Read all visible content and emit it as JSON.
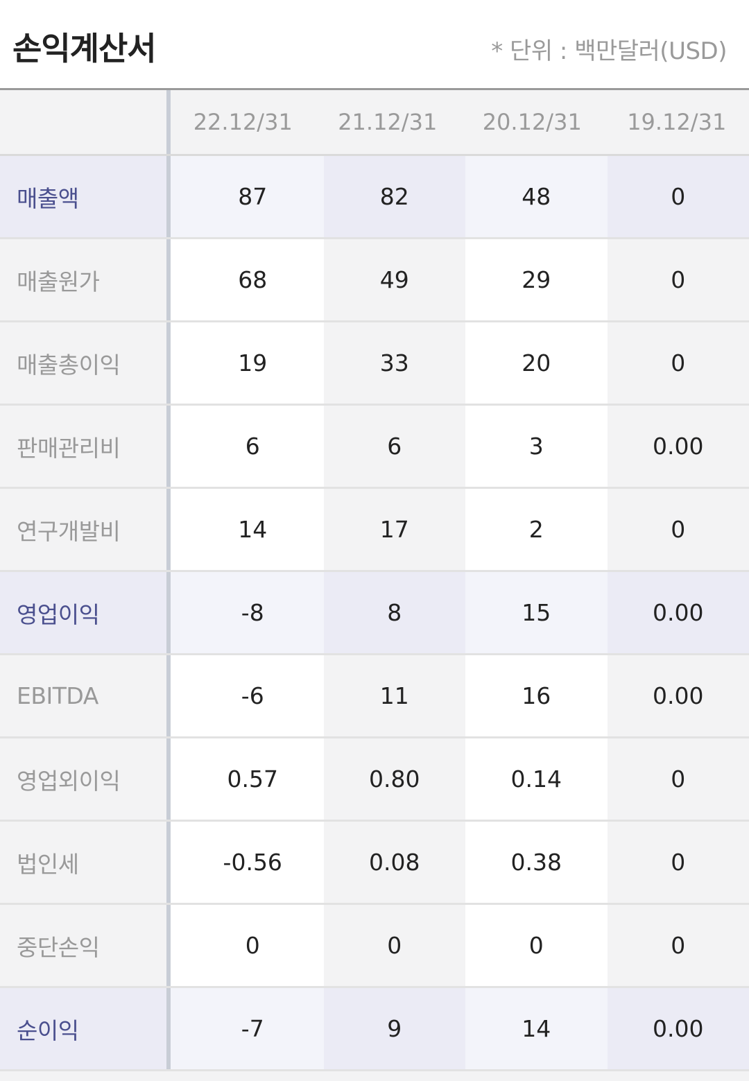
{
  "header": {
    "title": "손익계산서",
    "unit_note": "* 단위 : 백만달러(USD)"
  },
  "columns": [
    "22.12/31",
    "21.12/31",
    "20.12/31",
    "19.12/31"
  ],
  "rows": [
    {
      "label": "매출액",
      "values": [
        "87",
        "82",
        "48",
        "0"
      ]
    },
    {
      "label": "매출원가",
      "values": [
        "68",
        "49",
        "29",
        "0"
      ]
    },
    {
      "label": "매출총이익",
      "values": [
        "19",
        "33",
        "20",
        "0"
      ]
    },
    {
      "label": "판매관리비",
      "values": [
        "6",
        "6",
        "3",
        "0.00"
      ]
    },
    {
      "label": "연구개발비",
      "values": [
        "14",
        "17",
        "2",
        "0"
      ]
    },
    {
      "label": "영업이익",
      "values": [
        "-8",
        "8",
        "15",
        "0.00"
      ]
    },
    {
      "label": "EBITDA",
      "values": [
        "-6",
        "11",
        "16",
        "0.00"
      ]
    },
    {
      "label": "영업외이익",
      "values": [
        "0.57",
        "0.80",
        "0.14",
        "0"
      ]
    },
    {
      "label": "법인세",
      "values": [
        "-0.56",
        "0.08",
        "0.38",
        "0"
      ]
    },
    {
      "label": "중단손익",
      "values": [
        "0",
        "0",
        "0",
        "0"
      ]
    },
    {
      "label": "순이익",
      "values": [
        "-7",
        "9",
        "14",
        "0.00"
      ]
    }
  ],
  "colors": {
    "highlight_label": "#4a4f8e",
    "highlight_bg": "#ebebf5"
  }
}
